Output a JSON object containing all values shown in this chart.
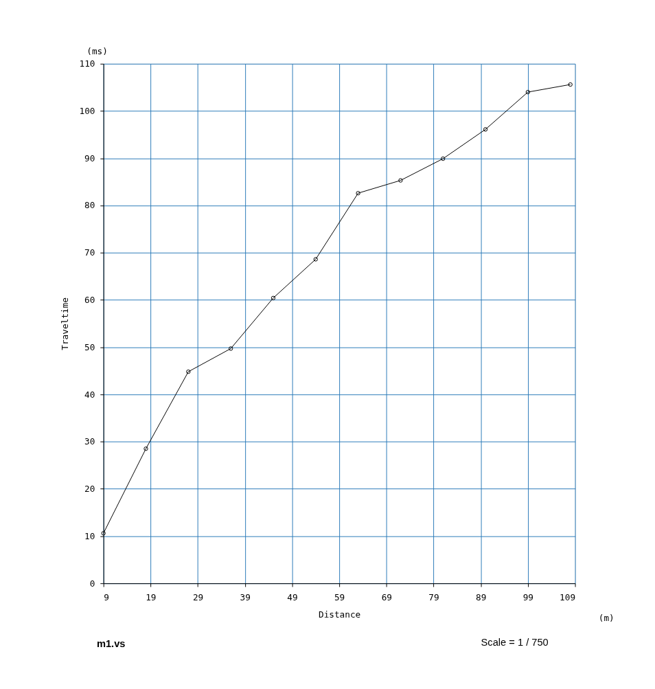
{
  "chart_data": {
    "type": "line",
    "xlabel": "Distance",
    "ylabel": "Traveltime",
    "x": [
      9,
      18,
      27,
      36,
      45,
      54,
      63,
      72,
      81,
      90,
      99,
      108
    ],
    "series": [
      {
        "color": "#000000",
        "values": [
          10.6,
          28.5,
          44.8,
          49.7,
          60.4,
          68.6,
          82.6,
          85.3,
          89.9,
          96.1,
          104.0,
          105.6
        ]
      }
    ],
    "xlim": [
      9,
      109
    ],
    "xticks": [
      9,
      19,
      29,
      39,
      49,
      59,
      69,
      79,
      89,
      99,
      109
    ],
    "ylim": [
      0,
      110
    ],
    "yticks": [
      0,
      10,
      20,
      30,
      40,
      50,
      60,
      70,
      80,
      90,
      100,
      110
    ],
    "grid": true,
    "marker": "circle",
    "line_style": "solid",
    "annotations": [
      "(ms)",
      "(m)",
      "m1.vs",
      "Scale = 1 / 750"
    ]
  }
}
